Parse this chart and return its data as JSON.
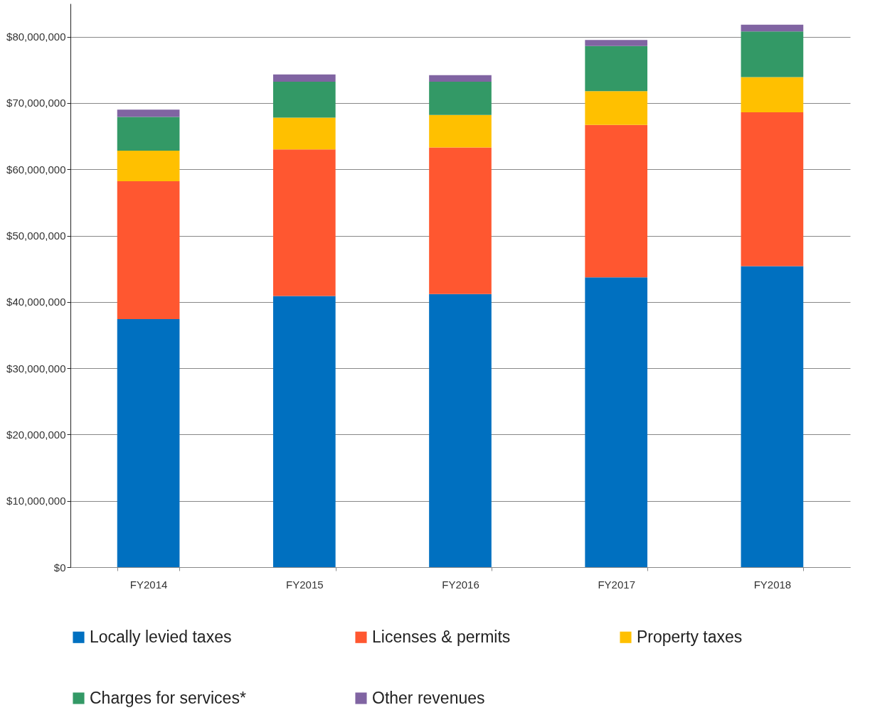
{
  "chart_data": {
    "type": "bar",
    "stacked": true,
    "categories": [
      "FY2014",
      "FY2015",
      "FY2016",
      "FY2017",
      "FY2018"
    ],
    "series": [
      {
        "name": "Locally levied taxes",
        "color": "#0070c0",
        "values": [
          37400000,
          40900000,
          41200000,
          43700000,
          45400000
        ]
      },
      {
        "name": "Licenses & permits",
        "color": "#ff5730",
        "values": [
          20800000,
          22100000,
          22100000,
          23000000,
          23200000
        ]
      },
      {
        "name": "Property taxes",
        "color": "#ffc000",
        "values": [
          4600000,
          4800000,
          4900000,
          5100000,
          5300000
        ]
      },
      {
        "name": "Charges for services*",
        "color": "#339966",
        "values": [
          5100000,
          5400000,
          5000000,
          6800000,
          6900000
        ]
      },
      {
        "name": "Other revenues",
        "color": "#8064a2",
        "values": [
          1100000,
          1100000,
          1000000,
          900000,
          1000000
        ]
      }
    ],
    "ylim": [
      0,
      85000000
    ],
    "yticks": [
      {
        "value": 0,
        "label": "$0"
      },
      {
        "value": 10000000,
        "label": "$10,000,000"
      },
      {
        "value": 20000000,
        "label": "$20,000,000"
      },
      {
        "value": 30000000,
        "label": "$30,000,000"
      },
      {
        "value": 40000000,
        "label": "$40,000,000"
      },
      {
        "value": 50000000,
        "label": "$50,000,000"
      },
      {
        "value": 60000000,
        "label": "$60,000,000"
      },
      {
        "value": 70000000,
        "label": "$70,000,000"
      },
      {
        "value": 80000000,
        "label": "$80,000,000"
      }
    ],
    "grid": "y",
    "legend": "bottom"
  }
}
